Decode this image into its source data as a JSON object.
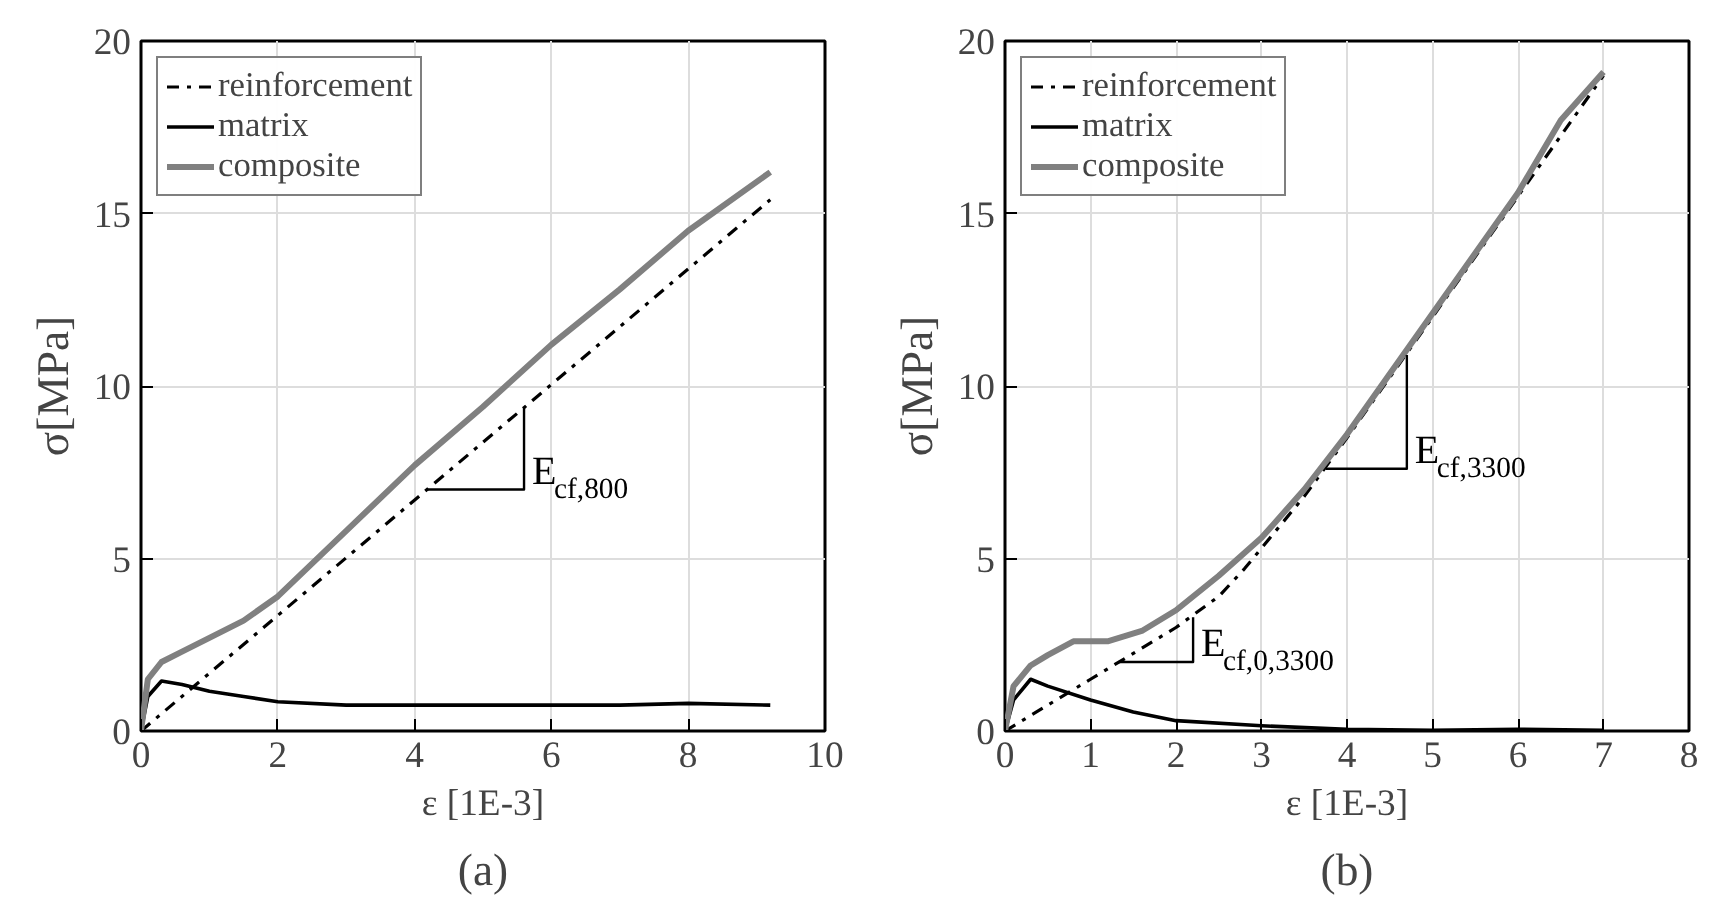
{
  "chart_data": [
    {
      "type": "line",
      "xlabel": "ε [1E-3]",
      "ylabel": "σ[MPa]",
      "xlim": [
        0,
        10
      ],
      "ylim": [
        0,
        20
      ],
      "xticks": [
        0,
        2,
        4,
        6,
        8,
        10
      ],
      "yticks": [
        0,
        5,
        10,
        15,
        20
      ],
      "grid": true,
      "legend": "top left",
      "series": [
        {
          "name": "reinforcement",
          "color": "#000000",
          "line_style": "dashdot",
          "x": [
            0,
            9.2
          ],
          "values": [
            0,
            15.4
          ]
        },
        {
          "name": "matrix",
          "color": "#000000",
          "line_style": "solid",
          "x": [
            0,
            0.1,
            0.3,
            0.6,
            1,
            1.5,
            2,
            3,
            4,
            5,
            6,
            7,
            8,
            9.2
          ],
          "values": [
            0,
            1.0,
            1.45,
            1.35,
            1.15,
            1.0,
            0.85,
            0.75,
            0.75,
            0.75,
            0.75,
            0.75,
            0.8,
            0.75
          ]
        },
        {
          "name": "composite",
          "color": "#808080",
          "line_style": "solid",
          "x": [
            0,
            0.1,
            0.3,
            0.6,
            1,
            1.5,
            2,
            3,
            4,
            5,
            6,
            7,
            8,
            9.2
          ],
          "values": [
            0,
            1.5,
            2.0,
            2.3,
            2.7,
            3.2,
            3.9,
            5.8,
            7.7,
            9.4,
            11.2,
            12.8,
            14.5,
            16.2
          ]
        },
        {
          "color": "#000000",
          "line_style": "solid",
          "x": [
            4.18,
            5.6,
            5.6
          ],
          "values": [
            7.0,
            7.0,
            9.37
          ]
        }
      ],
      "annotations": [
        "E$_{cf,800}$",
        "(a)"
      ]
    },
    {
      "type": "line",
      "xlabel": "ε [1E-3]",
      "ylabel": "σ[MPa]",
      "xlim": [
        0,
        8
      ],
      "ylim": [
        0,
        20
      ],
      "xticks": [
        0,
        1,
        2,
        3,
        4,
        5,
        6,
        7,
        8
      ],
      "yticks": [
        0,
        5,
        10,
        15,
        20
      ],
      "grid": true,
      "legend": "top left",
      "series": [
        {
          "name": "reinforcement",
          "color": "#000000",
          "line_style": "dashdot",
          "x": [
            0,
            1,
            2,
            2.5,
            2.8,
            3,
            3.5,
            4,
            5,
            6,
            7
          ],
          "values": [
            0,
            1.5,
            3.0,
            3.9,
            4.7,
            5.3,
            6.8,
            8.5,
            12.0,
            15.5,
            19.0
          ]
        },
        {
          "name": "matrix",
          "color": "#000000",
          "line_style": "solid",
          "x": [
            0,
            0.1,
            0.3,
            0.5,
            1,
            1.5,
            2,
            3,
            4,
            5,
            6,
            7
          ],
          "values": [
            0,
            0.9,
            1.5,
            1.3,
            0.9,
            0.55,
            0.3,
            0.15,
            0.05,
            0.02,
            0.05,
            0.02
          ]
        },
        {
          "name": "composite",
          "color": "#808080",
          "line_style": "solid",
          "x": [
            0,
            0.1,
            0.3,
            0.5,
            0.8,
            1.2,
            1.6,
            2,
            2.5,
            3,
            3.5,
            4,
            5,
            6,
            6.5,
            7
          ],
          "values": [
            0,
            1.3,
            1.9,
            2.2,
            2.6,
            2.6,
            2.9,
            3.5,
            4.5,
            5.6,
            7.0,
            8.6,
            12.1,
            15.6,
            17.7,
            19.1
          ]
        },
        {
          "color": "#000000",
          "line_style": "solid",
          "x": [
            3.75,
            4.7,
            4.7
          ],
          "values": [
            7.6,
            7.6,
            10.9
          ]
        },
        {
          "color": "#000000",
          "line_style": "solid",
          "x": [
            1.33,
            2.2,
            2.2
          ],
          "values": [
            2.0,
            2.0,
            3.3
          ]
        }
      ],
      "annotations": [
        "E$_{cf,3300}$",
        "E$_{cf,0,3300}$",
        "(b)"
      ]
    }
  ]
}
